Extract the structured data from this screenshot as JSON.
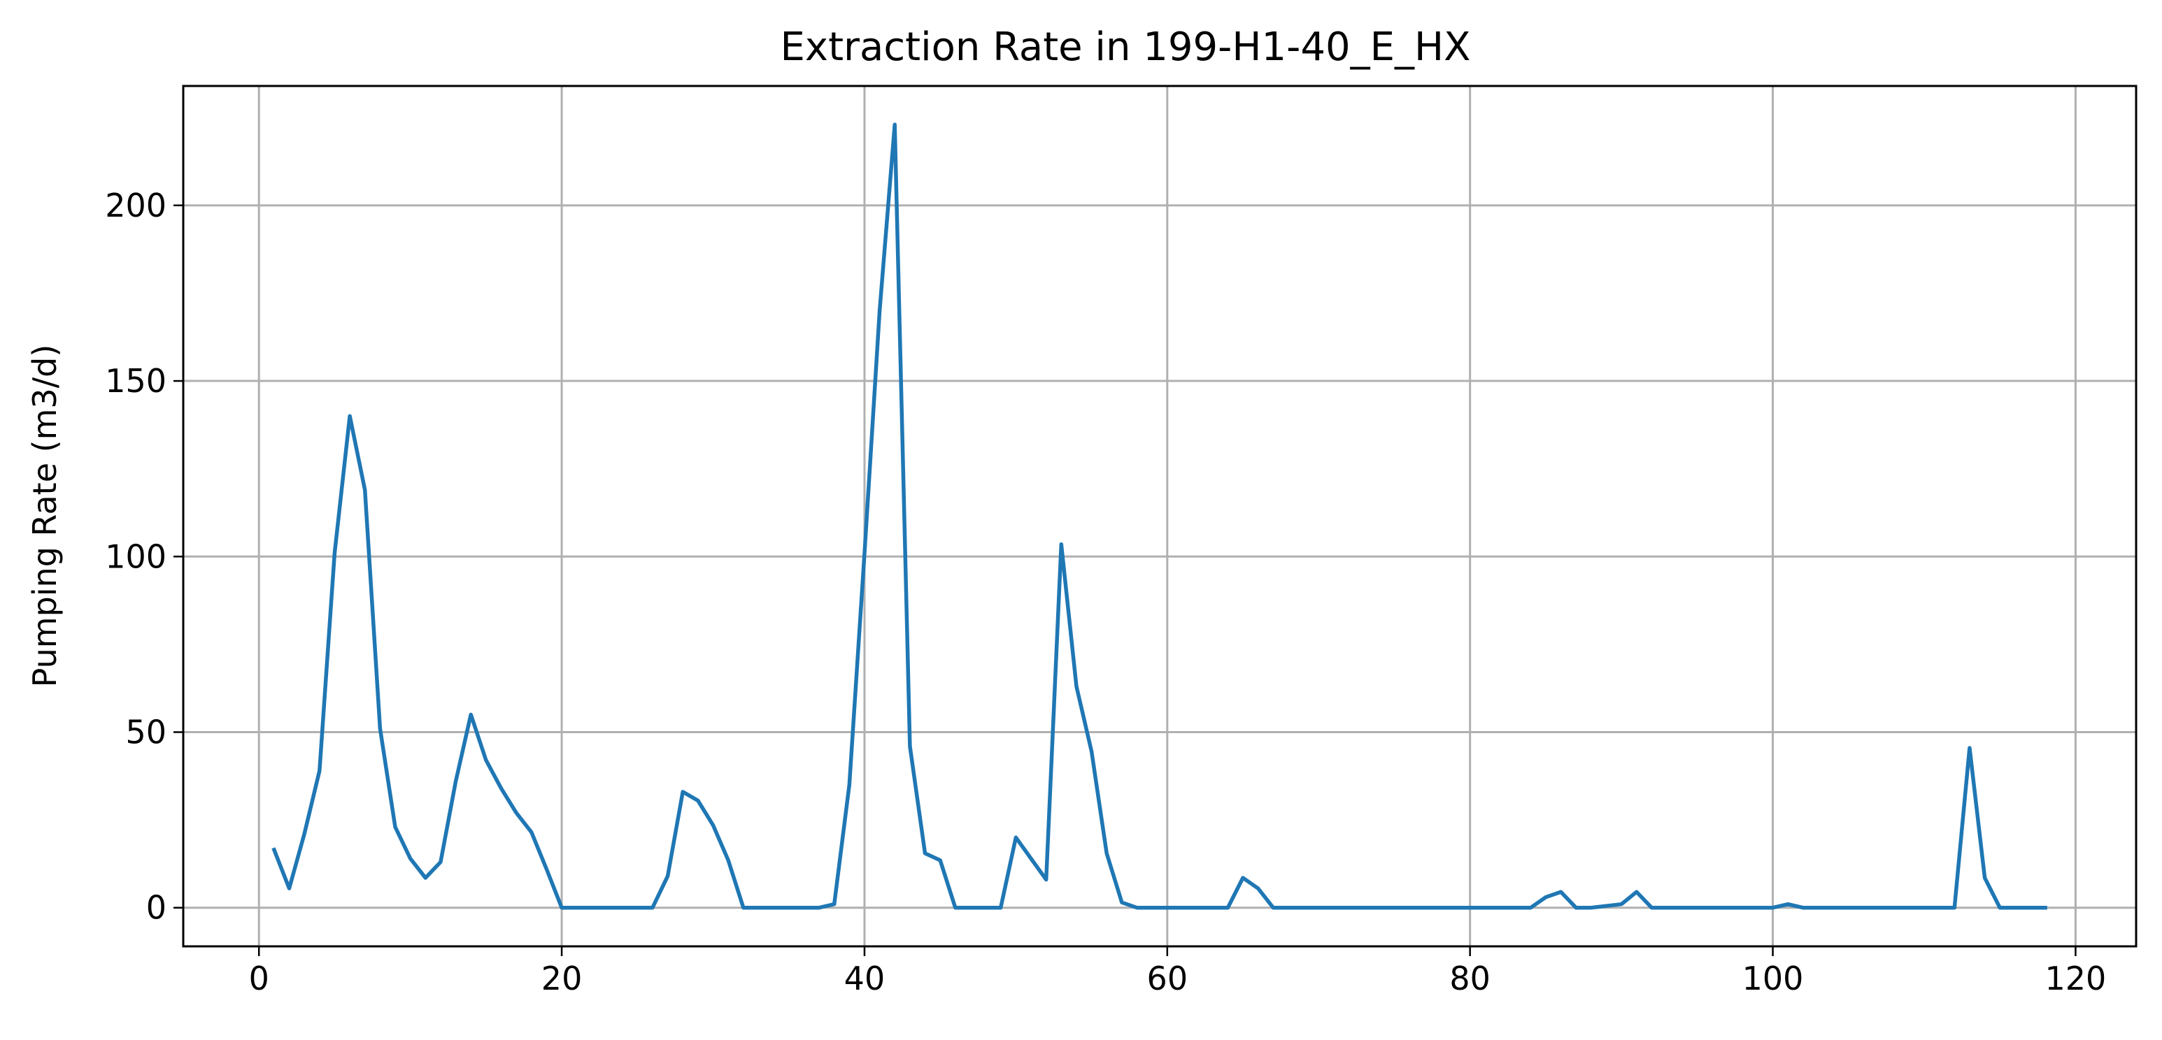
{
  "chart_data": {
    "type": "line",
    "title": "Extraction Rate in 199-H1-40_E_HX",
    "xlabel": "",
    "ylabel": "Pumping Rate (m3/d)",
    "xlim": [
      -5,
      124
    ],
    "ylim": [
      -11,
      234
    ],
    "xticks": [
      0,
      20,
      40,
      60,
      80,
      100,
      120
    ],
    "yticks": [
      0,
      50,
      100,
      150,
      200
    ],
    "grid": true,
    "series_color": "#1f77b4",
    "series": [
      {
        "x": [
          1,
          2,
          3,
          4,
          5,
          6,
          7,
          8,
          9,
          10,
          11,
          12,
          13,
          14,
          15,
          16,
          17,
          18,
          19,
          20,
          21,
          22,
          23,
          24,
          25,
          26,
          27,
          28,
          29,
          30,
          31,
          32,
          33,
          34,
          35,
          36,
          37,
          38,
          39,
          40,
          41,
          42,
          43,
          44,
          45,
          46,
          47,
          48,
          49,
          50,
          51,
          52,
          53,
          54,
          55,
          56,
          57,
          58,
          59,
          60,
          61,
          62,
          63,
          64,
          65,
          66,
          67,
          68,
          69,
          70,
          71,
          72,
          73,
          74,
          75,
          76,
          77,
          78,
          79,
          80,
          81,
          82,
          83,
          84,
          85,
          86,
          87,
          88,
          89,
          90,
          91,
          92,
          93,
          94,
          95,
          96,
          97,
          98,
          99,
          100,
          101,
          102,
          103,
          104,
          105,
          106,
          107,
          108,
          109,
          110,
          111,
          112,
          113,
          114,
          115,
          116,
          117,
          118
        ],
        "values": [
          16.5,
          5.5,
          21,
          39,
          101,
          140,
          119,
          51,
          23,
          14,
          8.5,
          13,
          36,
          55,
          42,
          34,
          27,
          21.5,
          11,
          0,
          0,
          0,
          0,
          0,
          0,
          0,
          9,
          33,
          30.5,
          23.5,
          13.5,
          0,
          0,
          0,
          0,
          0,
          0,
          1,
          35,
          101,
          170,
          223,
          46,
          15.5,
          13.5,
          0,
          0,
          0,
          0,
          20,
          14,
          8,
          103.5,
          63,
          44.5,
          15.5,
          1.5,
          0,
          0,
          0,
          0,
          0,
          0,
          0,
          8.5,
          5.5,
          0,
          0,
          0,
          0,
          0,
          0,
          0,
          0,
          0,
          0,
          0,
          0,
          0,
          0,
          0,
          0,
          0,
          0,
          3,
          4.5,
          0,
          0,
          0.5,
          1,
          4.5,
          0,
          0,
          0,
          0,
          0,
          0,
          0,
          0,
          0,
          1,
          0,
          0,
          0,
          0,
          0,
          0,
          0,
          0,
          0,
          0,
          0,
          45.5,
          8.5,
          0,
          0,
          0,
          0
        ]
      }
    ]
  }
}
